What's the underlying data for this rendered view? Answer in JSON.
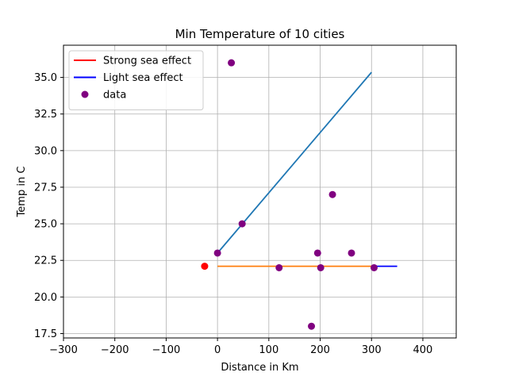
{
  "chart_data": {
    "type": "scatter",
    "title": "Min Temperature of 10 cities",
    "xlabel": "Distance in Km",
    "ylabel": "Temp in C",
    "xlim": [
      -300,
      465
    ],
    "ylim": [
      17.2,
      37.2
    ],
    "xticks": [
      -300,
      -200,
      -100,
      0,
      100,
      200,
      300,
      400
    ],
    "yticks": [
      17.5,
      20.0,
      22.5,
      25.0,
      27.5,
      30.0,
      32.5,
      35.0
    ],
    "grid": true,
    "legend_position": "top-left",
    "legend": [
      {
        "label": "Strong sea effect",
        "kind": "line",
        "color": "#ff0000"
      },
      {
        "label": "Light sea effect",
        "kind": "line",
        "color": "#0000ff"
      },
      {
        "label": "data",
        "kind": "marker",
        "color": "#800080"
      }
    ],
    "scatter": {
      "name": "data",
      "color": "#800080",
      "points": [
        {
          "x": 0,
          "y": 23.0
        },
        {
          "x": 27,
          "y": 36.0
        },
        {
          "x": 48,
          "y": 25.0
        },
        {
          "x": 120,
          "y": 22.0
        },
        {
          "x": 183,
          "y": 18.0
        },
        {
          "x": 195,
          "y": 23.0
        },
        {
          "x": 201,
          "y": 22.0
        },
        {
          "x": 224,
          "y": 27.0
        },
        {
          "x": 261,
          "y": 23.0
        },
        {
          "x": 305,
          "y": 22.0
        }
      ]
    },
    "lines": [
      {
        "name": "Strong sea effect fit",
        "color": "#1f77b4",
        "points": [
          {
            "x": 0,
            "y": 23.0
          },
          {
            "x": 300,
            "y": 35.35
          }
        ]
      },
      {
        "name": "Light sea effect fit",
        "color": "#ff7f0e",
        "points": [
          {
            "x": 0,
            "y": 22.1
          },
          {
            "x": 300,
            "y": 22.1
          }
        ]
      },
      {
        "name": "Light sea effect extension",
        "color": "#0000ff",
        "points": [
          {
            "x": 300,
            "y": 22.1
          },
          {
            "x": 350,
            "y": 22.1
          }
        ]
      }
    ],
    "extra_points": [
      {
        "x": -25,
        "y": 22.1,
        "color": "#ff0000"
      }
    ]
  }
}
